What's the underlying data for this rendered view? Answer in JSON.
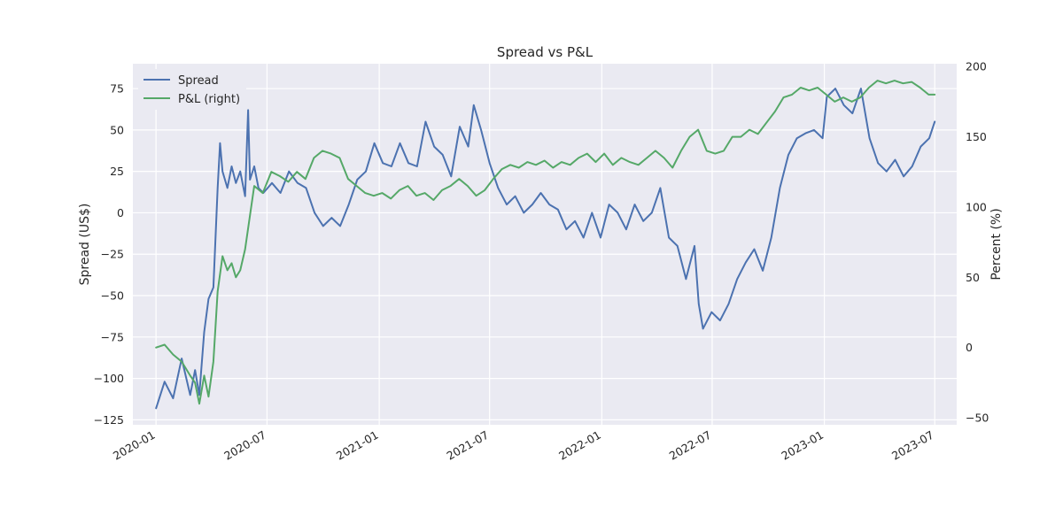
{
  "chart_data": {
    "type": "line",
    "title": "Spread vs P&L",
    "background_color": "#eaeaf2",
    "grid": true,
    "legend_position": "top-left",
    "x_axis": {
      "type": "date",
      "range": [
        "2019-11-24",
        "2023-08-06"
      ],
      "ticks": [
        "2020-01-01",
        "2020-07-01",
        "2021-01-01",
        "2021-07-01",
        "2022-01-01",
        "2022-07-01",
        "2023-01-01",
        "2023-07-01"
      ],
      "tick_labels": [
        "2020-01",
        "2020-07",
        "2021-01",
        "2021-07",
        "2022-01",
        "2022-07",
        "2023-01",
        "2023-07"
      ]
    },
    "y_left": {
      "label": "Spread (US$)",
      "range": [
        -128,
        90
      ],
      "ticks": [
        -125,
        -100,
        -75,
        -50,
        -25,
        0,
        25,
        50,
        75
      ]
    },
    "y_right": {
      "label": "Percent (%)",
      "range": [
        -55,
        202
      ],
      "ticks": [
        -50,
        0,
        50,
        100,
        150,
        200
      ]
    },
    "series": [
      {
        "name": "Spread",
        "axis": "left",
        "color": "#4c72b0",
        "points": [
          [
            "2020-01-01",
            -118
          ],
          [
            "2020-01-15",
            -102
          ],
          [
            "2020-01-29",
            -112
          ],
          [
            "2020-02-12",
            -88
          ],
          [
            "2020-02-26",
            -110
          ],
          [
            "2020-03-05",
            -95
          ],
          [
            "2020-03-12",
            -110
          ],
          [
            "2020-03-20",
            -72
          ],
          [
            "2020-03-27",
            -52
          ],
          [
            "2020-04-04",
            -45
          ],
          [
            "2020-04-11",
            15
          ],
          [
            "2020-04-15",
            42
          ],
          [
            "2020-04-19",
            25
          ],
          [
            "2020-04-27",
            15
          ],
          [
            "2020-05-04",
            28
          ],
          [
            "2020-05-11",
            18
          ],
          [
            "2020-05-18",
            25
          ],
          [
            "2020-05-26",
            10
          ],
          [
            "2020-05-31",
            62
          ],
          [
            "2020-06-03",
            20
          ],
          [
            "2020-06-10",
            28
          ],
          [
            "2020-06-17",
            15
          ],
          [
            "2020-06-25",
            12
          ],
          [
            "2020-07-09",
            18
          ],
          [
            "2020-07-23",
            12
          ],
          [
            "2020-08-06",
            25
          ],
          [
            "2020-08-20",
            18
          ],
          [
            "2020-09-03",
            15
          ],
          [
            "2020-09-17",
            0
          ],
          [
            "2020-10-01",
            -8
          ],
          [
            "2020-10-15",
            -3
          ],
          [
            "2020-10-29",
            -8
          ],
          [
            "2020-11-12",
            5
          ],
          [
            "2020-11-26",
            20
          ],
          [
            "2020-12-10",
            25
          ],
          [
            "2020-12-24",
            42
          ],
          [
            "2021-01-07",
            30
          ],
          [
            "2021-01-21",
            28
          ],
          [
            "2021-02-04",
            42
          ],
          [
            "2021-02-18",
            30
          ],
          [
            "2021-03-04",
            28
          ],
          [
            "2021-03-18",
            55
          ],
          [
            "2021-04-01",
            40
          ],
          [
            "2021-04-15",
            35
          ],
          [
            "2021-04-29",
            22
          ],
          [
            "2021-05-13",
            52
          ],
          [
            "2021-05-27",
            40
          ],
          [
            "2021-06-05",
            65
          ],
          [
            "2021-06-17",
            50
          ],
          [
            "2021-07-01",
            30
          ],
          [
            "2021-07-15",
            15
          ],
          [
            "2021-07-29",
            5
          ],
          [
            "2021-08-12",
            10
          ],
          [
            "2021-08-26",
            0
          ],
          [
            "2021-09-09",
            5
          ],
          [
            "2021-09-23",
            12
          ],
          [
            "2021-10-07",
            5
          ],
          [
            "2021-10-21",
            2
          ],
          [
            "2021-11-04",
            -10
          ],
          [
            "2021-11-18",
            -5
          ],
          [
            "2021-12-02",
            -15
          ],
          [
            "2021-12-16",
            0
          ],
          [
            "2021-12-30",
            -15
          ],
          [
            "2022-01-13",
            5
          ],
          [
            "2022-01-27",
            0
          ],
          [
            "2022-02-10",
            -10
          ],
          [
            "2022-02-24",
            5
          ],
          [
            "2022-03-10",
            -5
          ],
          [
            "2022-03-24",
            0
          ],
          [
            "2022-04-07",
            15
          ],
          [
            "2022-04-21",
            -15
          ],
          [
            "2022-05-05",
            -20
          ],
          [
            "2022-05-19",
            -40
          ],
          [
            "2022-06-02",
            -20
          ],
          [
            "2022-06-09",
            -55
          ],
          [
            "2022-06-16",
            -70
          ],
          [
            "2022-06-30",
            -60
          ],
          [
            "2022-07-14",
            -65
          ],
          [
            "2022-07-28",
            -55
          ],
          [
            "2022-08-11",
            -40
          ],
          [
            "2022-08-25",
            -30
          ],
          [
            "2022-09-08",
            -22
          ],
          [
            "2022-09-22",
            -35
          ],
          [
            "2022-10-06",
            -15
          ],
          [
            "2022-10-20",
            15
          ],
          [
            "2022-11-03",
            35
          ],
          [
            "2022-11-17",
            45
          ],
          [
            "2022-12-01",
            48
          ],
          [
            "2022-12-15",
            50
          ],
          [
            "2022-12-29",
            45
          ],
          [
            "2023-01-05",
            70
          ],
          [
            "2023-01-19",
            75
          ],
          [
            "2023-02-02",
            65
          ],
          [
            "2023-02-16",
            60
          ],
          [
            "2023-03-02",
            75
          ],
          [
            "2023-03-16",
            45
          ],
          [
            "2023-03-30",
            30
          ],
          [
            "2023-04-13",
            25
          ],
          [
            "2023-04-27",
            32
          ],
          [
            "2023-05-11",
            22
          ],
          [
            "2023-05-25",
            28
          ],
          [
            "2023-06-08",
            40
          ],
          [
            "2023-06-22",
            45
          ],
          [
            "2023-07-01",
            55
          ]
        ]
      },
      {
        "name": "P&L (right)",
        "axis": "right",
        "color": "#55a868",
        "points": [
          [
            "2020-01-01",
            0
          ],
          [
            "2020-01-15",
            2
          ],
          [
            "2020-01-29",
            -5
          ],
          [
            "2020-02-12",
            -10
          ],
          [
            "2020-02-26",
            -20
          ],
          [
            "2020-03-05",
            -25
          ],
          [
            "2020-03-12",
            -40
          ],
          [
            "2020-03-20",
            -20
          ],
          [
            "2020-03-27",
            -35
          ],
          [
            "2020-04-04",
            -10
          ],
          [
            "2020-04-11",
            40
          ],
          [
            "2020-04-19",
            65
          ],
          [
            "2020-04-27",
            55
          ],
          [
            "2020-05-04",
            60
          ],
          [
            "2020-05-11",
            50
          ],
          [
            "2020-05-18",
            55
          ],
          [
            "2020-05-26",
            70
          ],
          [
            "2020-06-10",
            115
          ],
          [
            "2020-06-24",
            110
          ],
          [
            "2020-07-08",
            125
          ],
          [
            "2020-07-22",
            122
          ],
          [
            "2020-08-05",
            118
          ],
          [
            "2020-08-19",
            125
          ],
          [
            "2020-09-02",
            120
          ],
          [
            "2020-09-16",
            135
          ],
          [
            "2020-09-30",
            140
          ],
          [
            "2020-10-14",
            138
          ],
          [
            "2020-10-28",
            135
          ],
          [
            "2020-11-11",
            120
          ],
          [
            "2020-11-25",
            115
          ],
          [
            "2020-12-09",
            110
          ],
          [
            "2020-12-23",
            108
          ],
          [
            "2021-01-06",
            110
          ],
          [
            "2021-01-20",
            106
          ],
          [
            "2021-02-03",
            112
          ],
          [
            "2021-02-17",
            115
          ],
          [
            "2021-03-03",
            108
          ],
          [
            "2021-03-17",
            110
          ],
          [
            "2021-03-31",
            105
          ],
          [
            "2021-04-14",
            112
          ],
          [
            "2021-04-28",
            115
          ],
          [
            "2021-05-12",
            120
          ],
          [
            "2021-05-26",
            115
          ],
          [
            "2021-06-09",
            108
          ],
          [
            "2021-06-23",
            112
          ],
          [
            "2021-07-07",
            120
          ],
          [
            "2021-07-21",
            127
          ],
          [
            "2021-08-04",
            130
          ],
          [
            "2021-08-18",
            128
          ],
          [
            "2021-09-01",
            132
          ],
          [
            "2021-09-15",
            130
          ],
          [
            "2021-09-29",
            133
          ],
          [
            "2021-10-13",
            128
          ],
          [
            "2021-10-27",
            132
          ],
          [
            "2021-11-10",
            130
          ],
          [
            "2021-11-24",
            135
          ],
          [
            "2021-12-08",
            138
          ],
          [
            "2021-12-22",
            132
          ],
          [
            "2022-01-05",
            138
          ],
          [
            "2022-01-19",
            130
          ],
          [
            "2022-02-02",
            135
          ],
          [
            "2022-02-16",
            132
          ],
          [
            "2022-03-02",
            130
          ],
          [
            "2022-03-16",
            135
          ],
          [
            "2022-03-30",
            140
          ],
          [
            "2022-04-13",
            135
          ],
          [
            "2022-04-27",
            128
          ],
          [
            "2022-05-11",
            140
          ],
          [
            "2022-05-25",
            150
          ],
          [
            "2022-06-08",
            155
          ],
          [
            "2022-06-22",
            140
          ],
          [
            "2022-07-06",
            138
          ],
          [
            "2022-07-20",
            140
          ],
          [
            "2022-08-03",
            150
          ],
          [
            "2022-08-17",
            150
          ],
          [
            "2022-08-31",
            155
          ],
          [
            "2022-09-14",
            152
          ],
          [
            "2022-09-28",
            160
          ],
          [
            "2022-10-12",
            168
          ],
          [
            "2022-10-26",
            178
          ],
          [
            "2022-11-09",
            180
          ],
          [
            "2022-11-23",
            185
          ],
          [
            "2022-12-07",
            183
          ],
          [
            "2022-12-21",
            185
          ],
          [
            "2023-01-04",
            180
          ],
          [
            "2023-01-18",
            175
          ],
          [
            "2023-02-01",
            178
          ],
          [
            "2023-02-15",
            175
          ],
          [
            "2023-03-01",
            178
          ],
          [
            "2023-03-15",
            185
          ],
          [
            "2023-03-29",
            190
          ],
          [
            "2023-04-12",
            188
          ],
          [
            "2023-04-26",
            190
          ],
          [
            "2023-05-10",
            188
          ],
          [
            "2023-05-24",
            189
          ],
          [
            "2023-06-07",
            185
          ],
          [
            "2023-06-21",
            180
          ],
          [
            "2023-07-01",
            180
          ]
        ]
      }
    ]
  }
}
